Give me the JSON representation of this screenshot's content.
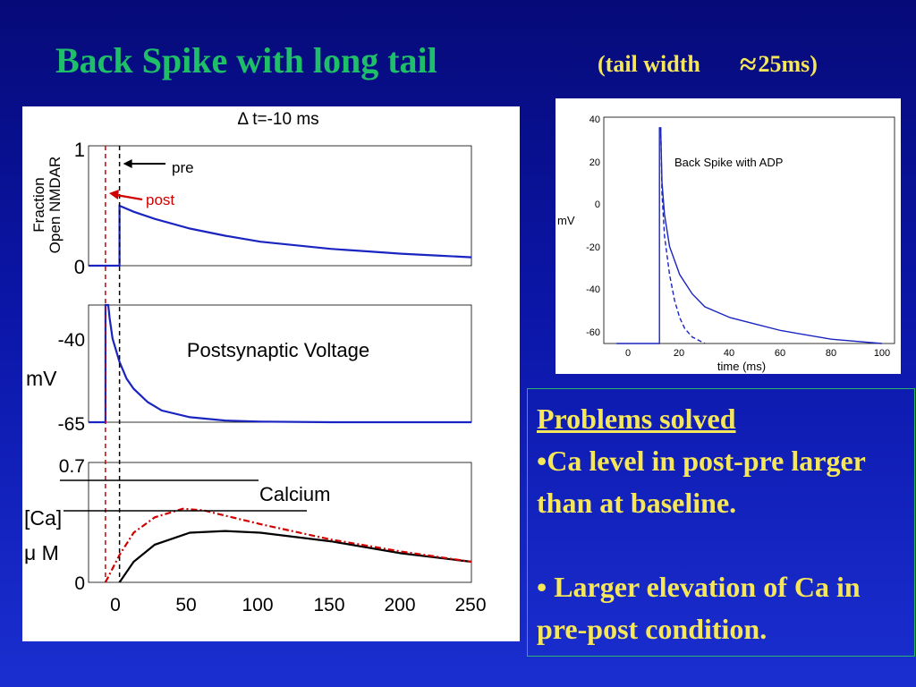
{
  "slide": {
    "title": "Back Spike with long tail",
    "subtitle_left": "(tail width",
    "subtitle_approx": "≈",
    "subtitle_right": "25ms)",
    "colors": {
      "title": "#1fbf6a",
      "subtitle": "#f5e65a",
      "text": "#f5e65a"
    }
  },
  "textbox": {
    "heading": "Problems solved",
    "item1": "•Ca level in post-pre larger than at baseline.",
    "item2": "• Larger elevation of Ca in pre-post condition."
  },
  "chart_data": [
    {
      "type": "line",
      "title": "Δ t=-10 ms",
      "ylabel_line1": "Fraction",
      "ylabel_line2": "Open NMDAR",
      "y_ticks": [
        "1",
        "0"
      ],
      "ylim": [
        0,
        1
      ],
      "xlim": [
        -22,
        250
      ],
      "grid": false,
      "annotations": [
        {
          "text": "pre",
          "color": "#000000",
          "points_to_x": 0
        },
        {
          "text": "post",
          "color": "#d00000",
          "points_to_x": -10
        }
      ],
      "markers": [
        {
          "name": "pre",
          "x": 0,
          "color": "#000000",
          "style": "dashed"
        },
        {
          "name": "post",
          "x": -10,
          "color": "#d00000",
          "style": "dashed"
        }
      ],
      "series": [
        {
          "color": "#1a24c0",
          "x": [
            -22,
            0,
            0,
            10,
            25,
            50,
            75,
            100,
            125,
            150,
            175,
            200,
            225,
            250
          ],
          "y": [
            0,
            0,
            0.5,
            0.45,
            0.39,
            0.31,
            0.25,
            0.2,
            0.17,
            0.14,
            0.12,
            0.1,
            0.085,
            0.07
          ]
        }
      ]
    },
    {
      "type": "line",
      "title": "Postsynaptic Voltage",
      "ylabel": "mV",
      "y_ticks": [
        "-40",
        "-65"
      ],
      "ylim": [
        -65,
        -30
      ],
      "xlim": [
        -22,
        250
      ],
      "grid": false,
      "series": [
        {
          "color": "#1a24c0",
          "x": [
            -22,
            -10,
            -10,
            -8,
            -7,
            -5,
            0,
            5,
            10,
            20,
            30,
            50,
            75,
            100,
            150,
            250
          ],
          "y": [
            -65,
            -65,
            -30,
            -30,
            -34,
            -40,
            -47,
            -52,
            -55,
            -59,
            -61.5,
            -63.5,
            -64.5,
            -64.8,
            -65,
            -65
          ]
        }
      ]
    },
    {
      "type": "line",
      "title": "Calcium",
      "ylabel_line1": "[Ca]",
      "ylabel_line2": "μ M",
      "y_ticks": [
        "0.7",
        "0"
      ],
      "x_ticks": [
        "0",
        "50",
        "100",
        "150",
        "200",
        "250"
      ],
      "ylim": [
        0,
        0.7
      ],
      "xlim": [
        -22,
        250
      ],
      "grid": false,
      "series": [
        {
          "color": "#000000",
          "x": [
            0,
            10,
            25,
            50,
            75,
            100,
            150,
            200,
            250
          ],
          "y": [
            0,
            0.12,
            0.22,
            0.29,
            0.3,
            0.29,
            0.24,
            0.17,
            0.12
          ]
        },
        {
          "color": "#d00000",
          "style": "dash-dot",
          "x": [
            -10,
            0,
            10,
            25,
            45,
            60,
            80,
            100,
            150,
            200,
            250
          ],
          "y": [
            0,
            0.16,
            0.29,
            0.38,
            0.43,
            0.42,
            0.38,
            0.34,
            0.25,
            0.18,
            0.12
          ]
        }
      ]
    },
    {
      "type": "line",
      "title": "Back Spike with ADP",
      "xlabel": "time (ms)",
      "ylabel": "mV",
      "x_ticks": [
        "0",
        "20",
        "40",
        "60",
        "80",
        "100"
      ],
      "y_ticks": [
        "40",
        "20",
        "0",
        "-20",
        "-40",
        "-60"
      ],
      "xlim": [
        -10,
        105
      ],
      "ylim": [
        -65,
        40
      ],
      "grid": false,
      "series": [
        {
          "color": "#1a24c0",
          "style": "solid",
          "x": [
            -5,
            12,
            12,
            12.5,
            13,
            14,
            16,
            20,
            25,
            30,
            40,
            50,
            60,
            80,
            100
          ],
          "y": [
            -65,
            -65,
            35,
            35,
            10,
            -5,
            -20,
            -33,
            -42,
            -48,
            -53,
            -56,
            -59,
            -63,
            -65
          ]
        },
        {
          "color": "#1a24c0",
          "style": "dashed",
          "x": [
            12,
            12.5,
            13,
            14,
            16,
            18,
            20,
            22,
            25,
            30
          ],
          "y": [
            35,
            35,
            5,
            -15,
            -33,
            -45,
            -53,
            -58,
            -62,
            -65
          ]
        }
      ]
    }
  ]
}
